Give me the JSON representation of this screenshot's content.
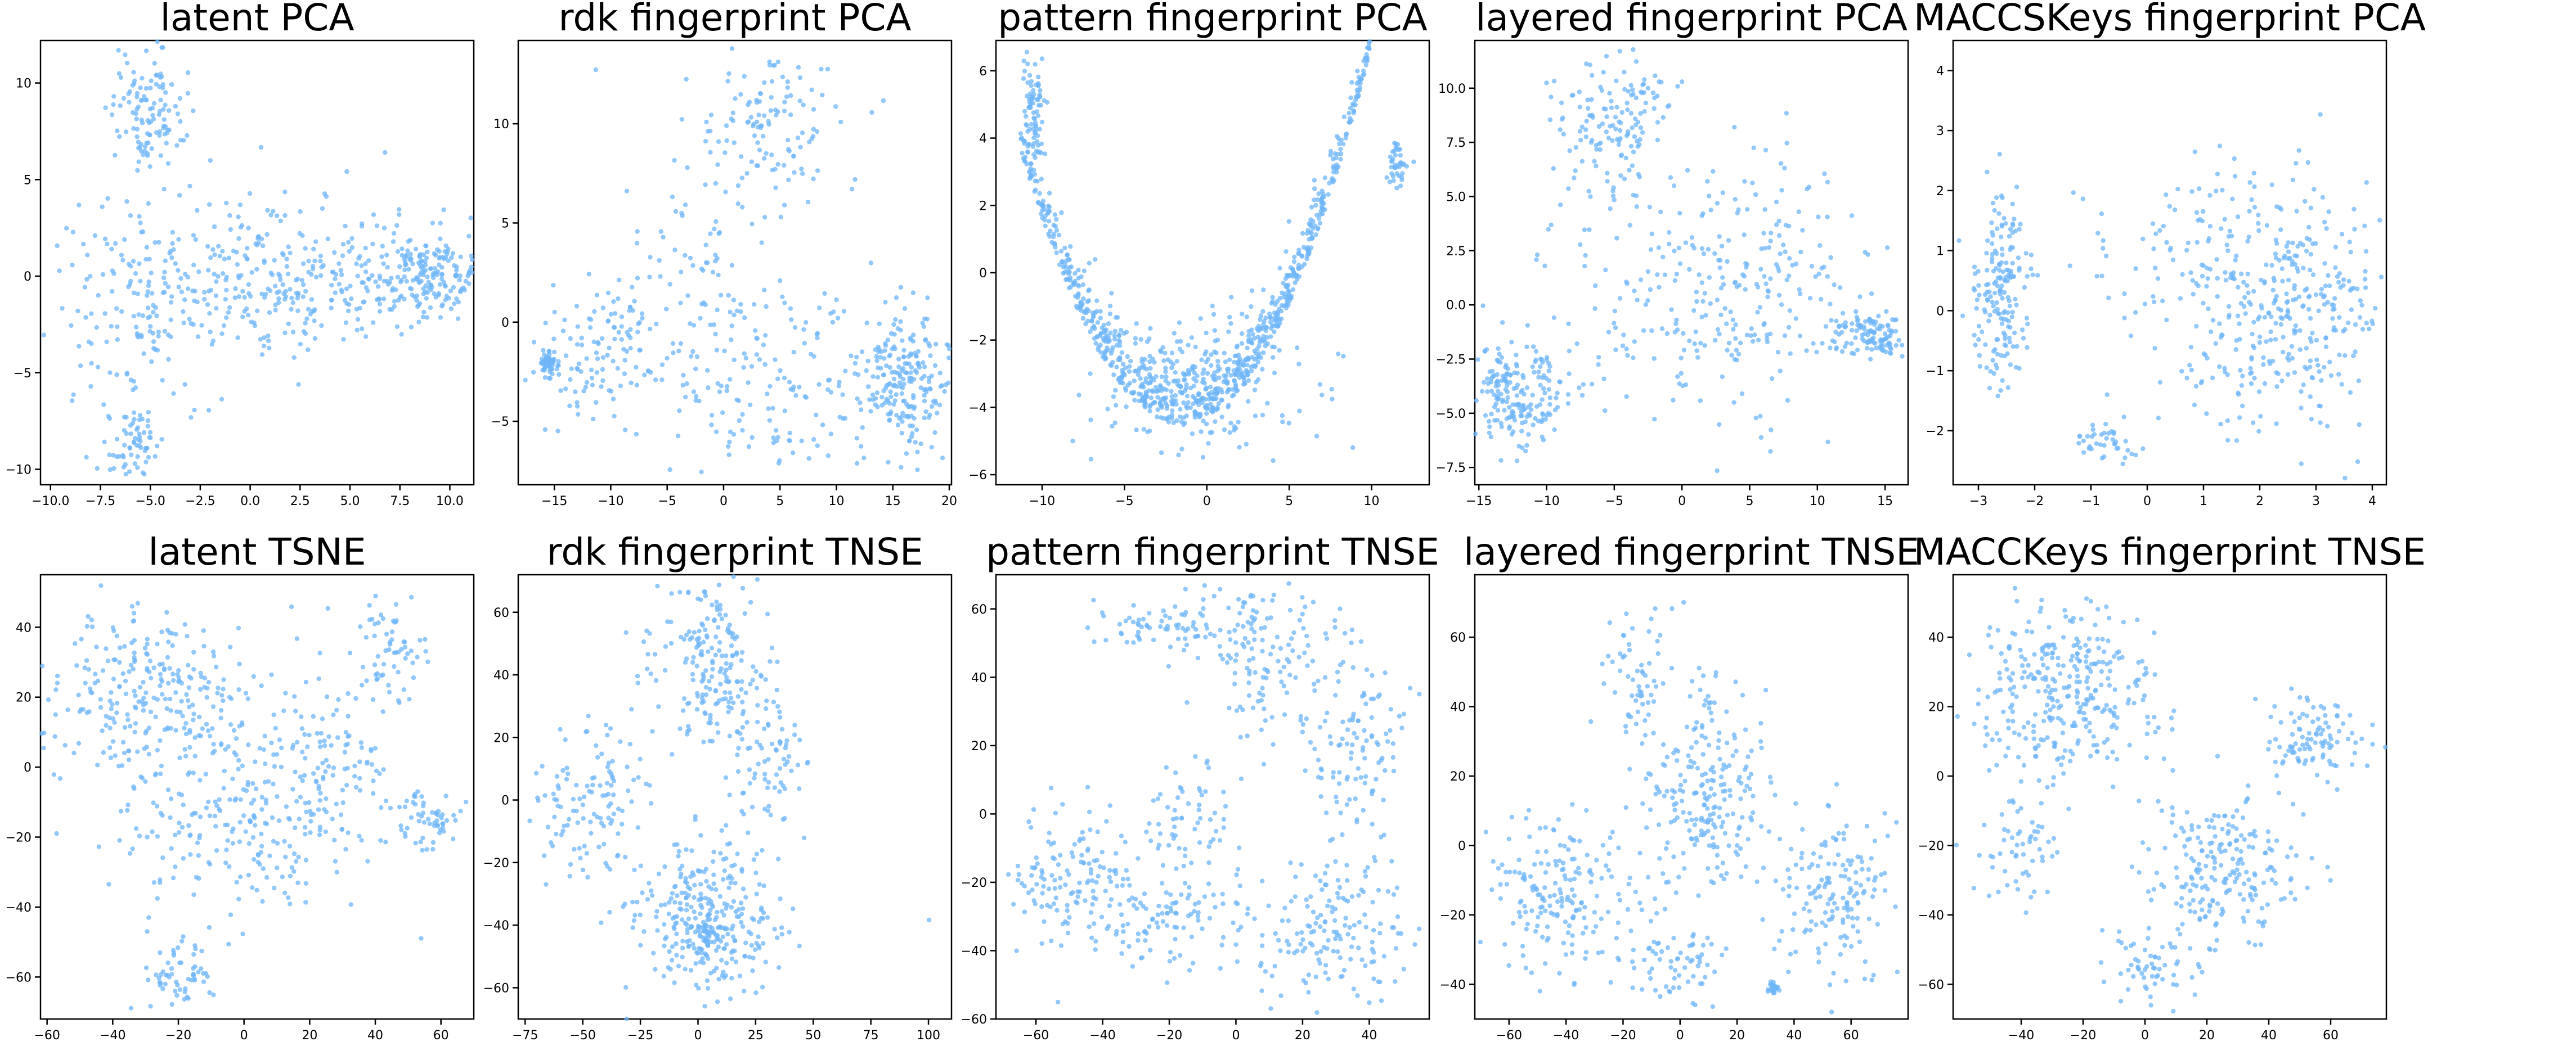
{
  "figure": {
    "point_color": "#6fb5f8",
    "frame_color": "#000000",
    "background": "#ffffff"
  },
  "chart_data": [
    {
      "type": "scatter",
      "title": "latent PCA",
      "xlim": [
        -10.5,
        11.2
      ],
      "ylim": [
        -10.8,
        12.2
      ],
      "xticks": [
        -10.0,
        -7.5,
        -5.0,
        -2.5,
        0.0,
        2.5,
        5.0,
        7.5,
        10.0
      ],
      "xtick_labels": [
        "−10.0",
        "−7.5",
        "−5.0",
        "−2.5",
        "0.0",
        "2.5",
        "5.0",
        "7.5",
        "10.0"
      ],
      "yticks": [
        -10,
        -5,
        0,
        5,
        10
      ],
      "ytick_labels": [
        "−10",
        "−5",
        "0",
        "5",
        "10"
      ],
      "clusters": [
        {
          "cx": -5.2,
          "cy": 8.5,
          "sx": 0.9,
          "sy": 1.6,
          "n": 120
        },
        {
          "cx": -6.0,
          "cy": -8.5,
          "sx": 0.8,
          "sy": 1.0,
          "n": 70
        },
        {
          "cx": 3.0,
          "cy": 0.0,
          "sx": 4.5,
          "sy": 1.6,
          "n": 260
        },
        {
          "cx": 9.0,
          "cy": 0.0,
          "sx": 1.2,
          "sy": 1.0,
          "n": 160
        },
        {
          "cx": -5.5,
          "cy": -1.5,
          "sx": 2.5,
          "sy": 2.5,
          "n": 140
        },
        {
          "cx": 0.0,
          "cy": 0.5,
          "sx": 3.5,
          "sy": 3.0,
          "n": 80
        }
      ]
    },
    {
      "type": "scatter",
      "title": "rdk fingerprint PCA",
      "xlim": [
        -18.2,
        20.2
      ],
      "ylim": [
        -8.2,
        14.2
      ],
      "xticks": [
        -15,
        -10,
        -5,
        0,
        5,
        10,
        15,
        20
      ],
      "xtick_labels": [
        "−15",
        "−10",
        "−5",
        "0",
        "5",
        "10",
        "15",
        "20"
      ],
      "yticks": [
        -5,
        0,
        5,
        10
      ],
      "ytick_labels": [
        "−5",
        "0",
        "5",
        "10"
      ],
      "clusters": [
        {
          "cx": -15.6,
          "cy": -2.1,
          "sx": 0.4,
          "sy": 0.3,
          "n": 60
        },
        {
          "cx": -11.0,
          "cy": -1.5,
          "sx": 2.5,
          "sy": 1.8,
          "n": 100
        },
        {
          "cx": 4.5,
          "cy": 10.0,
          "sx": 3.0,
          "sy": 2.0,
          "n": 120
        },
        {
          "cx": 16.0,
          "cy": -3.0,
          "sx": 1.8,
          "sy": 1.8,
          "n": 200
        },
        {
          "cx": 5.0,
          "cy": -3.0,
          "sx": 6.0,
          "sy": 2.5,
          "n": 180
        },
        {
          "cx": -3.0,
          "cy": 3.0,
          "sx": 4.0,
          "sy": 3.0,
          "n": 80
        }
      ]
    },
    {
      "type": "scatter",
      "title": "pattern fingerprint PCA",
      "xlim": [
        -12.8,
        13.5
      ],
      "ylim": [
        -6.3,
        6.9
      ],
      "xticks": [
        -10,
        -5,
        0,
        5,
        10
      ],
      "xtick_labels": [
        "−10",
        "−5",
        "0",
        "5",
        "10"
      ],
      "yticks": [
        -6,
        -4,
        -2,
        0,
        2,
        4,
        6
      ],
      "ytick_labels": [
        "−6",
        "−4",
        "−2",
        "0",
        "2",
        "4",
        "6"
      ],
      "curve": {
        "n": 900,
        "vertex_x": -1.5,
        "vertex_y": -4.5,
        "coef": 0.085,
        "spread": 0.8
      },
      "clusters": [
        {
          "cx": -10.5,
          "cy": 4.8,
          "sx": 0.35,
          "sy": 0.8,
          "n": 80
        },
        {
          "cx": 11.5,
          "cy": 3.3,
          "sx": 0.3,
          "sy": 0.4,
          "n": 40
        },
        {
          "cx": 0.0,
          "cy": -3.5,
          "sx": 4.0,
          "sy": 1.0,
          "n": 150
        }
      ]
    },
    {
      "type": "scatter",
      "title": "layered fingerprint PCA",
      "xlim": [
        -15.3,
        16.7
      ],
      "ylim": [
        -8.3,
        12.2
      ],
      "xticks": [
        -15,
        -10,
        -5,
        0,
        5,
        10,
        15
      ],
      "xtick_labels": [
        "−15",
        "−10",
        "−5",
        "0",
        "5",
        "10",
        "15"
      ],
      "yticks": [
        -7.5,
        -5.0,
        -2.5,
        0.0,
        2.5,
        5.0,
        7.5,
        10.0
      ],
      "ytick_labels": [
        "−7.5",
        "−5.0",
        "−2.5",
        "0.0",
        "2.5",
        "5.0",
        "7.5",
        "10.0"
      ],
      "clusters": [
        {
          "cx": -12.0,
          "cy": -4.0,
          "sx": 1.8,
          "sy": 1.2,
          "n": 200
        },
        {
          "cx": -5.0,
          "cy": 8.5,
          "sx": 2.0,
          "sy": 1.5,
          "n": 140
        },
        {
          "cx": 13.5,
          "cy": -1.2,
          "sx": 1.5,
          "sy": 0.6,
          "n": 90
        },
        {
          "cx": 15.0,
          "cy": -1.8,
          "sx": 0.4,
          "sy": 0.2,
          "n": 25
        },
        {
          "cx": 3.0,
          "cy": 0.5,
          "sx": 6.0,
          "sy": 3.0,
          "n": 300
        }
      ]
    },
    {
      "type": "scatter",
      "title": "MACCSKeys fingerprint PCA",
      "xlim": [
        -3.45,
        4.25
      ],
      "ylim": [
        -2.9,
        4.5
      ],
      "xticks": [
        -3,
        -2,
        -1,
        0,
        1,
        2,
        3,
        4
      ],
      "xtick_labels": [
        "−3",
        "−2",
        "−1",
        "0",
        "1",
        "2",
        "3",
        "4"
      ],
      "yticks": [
        -2,
        -1,
        0,
        1,
        2,
        3,
        4
      ],
      "ytick_labels": [
        "−2",
        "−1",
        "0",
        "1",
        "2",
        "3",
        "4"
      ],
      "clusters": [
        {
          "cx": -2.6,
          "cy": 0.3,
          "sx": 0.25,
          "sy": 0.8,
          "n": 180
        },
        {
          "cx": -0.8,
          "cy": -2.2,
          "sx": 0.3,
          "sy": 0.2,
          "n": 40
        },
        {
          "cx": 2.5,
          "cy": 0.0,
          "sx": 1.0,
          "sy": 1.0,
          "n": 350
        },
        {
          "cx": 1.0,
          "cy": 1.2,
          "sx": 1.0,
          "sy": 0.8,
          "n": 80
        }
      ]
    },
    {
      "type": "scatter",
      "title": "latent TSNE",
      "xlim": [
        -62,
        70
      ],
      "ylim": [
        -72,
        55
      ],
      "xticks": [
        -60,
        -40,
        -20,
        0,
        20,
        40,
        60
      ],
      "xtick_labels": [
        "−60",
        "−40",
        "−20",
        "0",
        "20",
        "40",
        "60"
      ],
      "yticks": [
        -60,
        -40,
        -20,
        0,
        20,
        40
      ],
      "ytick_labels": [
        "−60",
        "−40",
        "−20",
        "0",
        "20",
        "40"
      ],
      "clusters": [
        {
          "cx": -30.0,
          "cy": 20.0,
          "sx": 15.0,
          "sy": 12.0,
          "n": 260
        },
        {
          "cx": -20.0,
          "cy": -60.0,
          "sx": 6.0,
          "sy": 5.0,
          "n": 60
        },
        {
          "cx": 45.0,
          "cy": 35.0,
          "sx": 6.0,
          "sy": 8.0,
          "n": 60
        },
        {
          "cx": 55.0,
          "cy": -15.0,
          "sx": 5.0,
          "sy": 5.0,
          "n": 60
        },
        {
          "cx": 0.0,
          "cy": -15.0,
          "sx": 20.0,
          "sy": 15.0,
          "n": 260
        },
        {
          "cx": 25.0,
          "cy": 5.0,
          "sx": 8.0,
          "sy": 15.0,
          "n": 80
        }
      ]
    },
    {
      "type": "scatter",
      "title": "rdk fingerprint TNSE",
      "xlim": [
        -78,
        110
      ],
      "ylim": [
        -70,
        72
      ],
      "xticks": [
        -75,
        -50,
        -25,
        0,
        25,
        50,
        75,
        100
      ],
      "xtick_labels": [
        "−75",
        "−50",
        "−25",
        "0",
        "25",
        "50",
        "75",
        "100"
      ],
      "yticks": [
        -60,
        -40,
        -20,
        0,
        20,
        40,
        60
      ],
      "ytick_labels": [
        "−60",
        "−40",
        "−20",
        "0",
        "20",
        "40",
        "60"
      ],
      "clusters": [
        {
          "cx": 5.0,
          "cy": -38.0,
          "sx": 15.0,
          "sy": 12.0,
          "n": 320
        },
        {
          "cx": 5.0,
          "cy": 45.0,
          "sx": 12.0,
          "sy": 15.0,
          "n": 200
        },
        {
          "cx": -45.0,
          "cy": 0.0,
          "sx": 15.0,
          "sy": 12.0,
          "n": 120
        },
        {
          "cx": 30.0,
          "cy": 15.0,
          "sx": 8.0,
          "sy": 12.0,
          "n": 80
        },
        {
          "cx": 3.0,
          "cy": -42.0,
          "sx": 1.5,
          "sy": 1.5,
          "n": 20
        },
        {
          "cx": 100.0,
          "cy": -38.0,
          "sx": 0.5,
          "sy": 0.5,
          "n": 1
        }
      ]
    },
    {
      "type": "scatter",
      "title": "pattern fingerprint TNSE",
      "xlim": [
        -72,
        58
      ],
      "ylim": [
        -60,
        70
      ],
      "xticks": [
        -60,
        -40,
        -20,
        0,
        20,
        40
      ],
      "xtick_labels": [
        "−60",
        "−40",
        "−20",
        "0",
        "20",
        "40"
      ],
      "yticks": [
        -60,
        -40,
        -20,
        0,
        20,
        40,
        60
      ],
      "ytick_labels": [
        "−60",
        "−40",
        "−20",
        "0",
        "20",
        "40",
        "60"
      ],
      "clusters": [
        {
          "cx": -20.0,
          "cy": 55.0,
          "sx": 12.0,
          "sy": 4.0,
          "n": 80
        },
        {
          "cx": 10.0,
          "cy": 45.0,
          "sx": 10.0,
          "sy": 12.0,
          "n": 120
        },
        {
          "cx": 35.0,
          "cy": 20.0,
          "sx": 8.0,
          "sy": 15.0,
          "n": 120
        },
        {
          "cx": -50.0,
          "cy": -20.0,
          "sx": 10.0,
          "sy": 10.0,
          "n": 140
        },
        {
          "cx": -20.0,
          "cy": -30.0,
          "sx": 10.0,
          "sy": 8.0,
          "n": 100
        },
        {
          "cx": 30.0,
          "cy": -35.0,
          "sx": 12.0,
          "sy": 10.0,
          "n": 160
        },
        {
          "cx": -15.0,
          "cy": 0.0,
          "sx": 8.0,
          "sy": 8.0,
          "n": 60
        }
      ]
    },
    {
      "type": "scatter",
      "title": "layered fingerprint TNSE",
      "xlim": [
        -72,
        80
      ],
      "ylim": [
        -50,
        78
      ],
      "xticks": [
        -60,
        -40,
        -20,
        0,
        20,
        40,
        60
      ],
      "xtick_labels": [
        "−60",
        "−40",
        "−20",
        "0",
        "20",
        "40",
        "60"
      ],
      "yticks": [
        -40,
        -20,
        0,
        20,
        40,
        60
      ],
      "ytick_labels": [
        "−40",
        "−20",
        "0",
        "20",
        "40",
        "60"
      ],
      "clusters": [
        {
          "cx": 10.0,
          "cy": 15.0,
          "sx": 10.0,
          "sy": 15.0,
          "n": 220
        },
        {
          "cx": -40.0,
          "cy": -15.0,
          "sx": 15.0,
          "sy": 12.0,
          "n": 200
        },
        {
          "cx": 55.0,
          "cy": -15.0,
          "sx": 10.0,
          "sy": 12.0,
          "n": 160
        },
        {
          "cx": -15.0,
          "cy": 50.0,
          "sx": 6.0,
          "sy": 10.0,
          "n": 60
        },
        {
          "cx": 0.0,
          "cy": -35.0,
          "sx": 8.0,
          "sy": 5.0,
          "n": 60
        },
        {
          "cx": 33.0,
          "cy": -41.0,
          "sx": 0.8,
          "sy": 0.8,
          "n": 25
        }
      ]
    },
    {
      "type": "scatter",
      "title": "MACCKeys fingerprint TNSE",
      "xlim": [
        -62,
        78
      ],
      "ylim": [
        -70,
        58
      ],
      "xticks": [
        -40,
        -20,
        0,
        20,
        40,
        60
      ],
      "xtick_labels": [
        "−40",
        "−20",
        "0",
        "20",
        "40",
        "60"
      ],
      "yticks": [
        -60,
        -40,
        -20,
        0,
        20,
        40
      ],
      "ytick_labels": [
        "−60",
        "−40",
        "−20",
        "0",
        "20",
        "40"
      ],
      "clusters": [
        {
          "cx": -25.0,
          "cy": 25.0,
          "sx": 15.0,
          "sy": 12.0,
          "n": 320
        },
        {
          "cx": 25.0,
          "cy": -25.0,
          "sx": 12.0,
          "sy": 12.0,
          "n": 220
        },
        {
          "cx": 55.0,
          "cy": 10.0,
          "sx": 8.0,
          "sy": 6.0,
          "n": 100
        },
        {
          "cx": 0.0,
          "cy": -55.0,
          "sx": 8.0,
          "sy": 5.0,
          "n": 60
        },
        {
          "cx": -40.0,
          "cy": -20.0,
          "sx": 8.0,
          "sy": 8.0,
          "n": 60
        }
      ]
    }
  ]
}
